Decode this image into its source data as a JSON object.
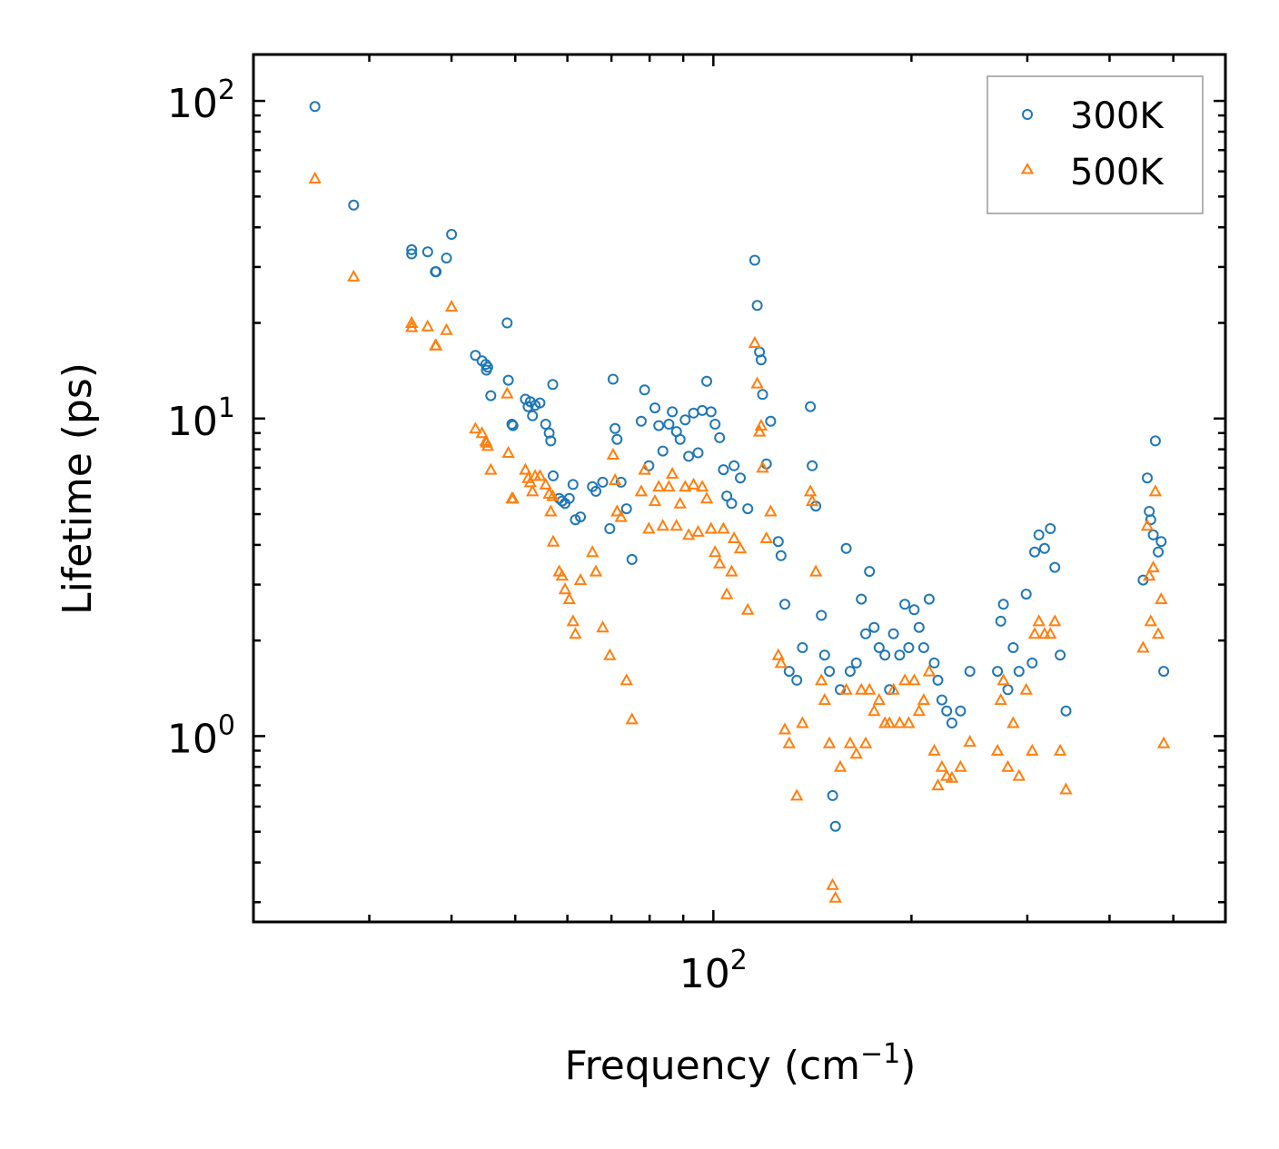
{
  "chart_data": {
    "type": "scatter",
    "title": "",
    "xlabel": "Frequency (cm",
    "xlabel_sup": "−1",
    "xlabel_end": ")",
    "ylabel": "Lifetime (ps)",
    "xscale": "log",
    "yscale": "log",
    "xlim": [
      20,
      600
    ],
    "ylim": [
      0.26,
      140
    ],
    "x_ticks": [
      {
        "base": "10",
        "exp": "2",
        "value": 100
      }
    ],
    "y_ticks": [
      {
        "base": "10",
        "exp": "0",
        "value": 1
      },
      {
        "base": "10",
        "exp": "1",
        "value": 10
      },
      {
        "base": "10",
        "exp": "2",
        "value": 100
      }
    ],
    "legend": {
      "position": "top-right",
      "entries": [
        "300K",
        "500K"
      ]
    },
    "series": [
      {
        "name": "300K",
        "marker": "circle",
        "color": "#1f77b4",
        "points": [
          [
            24.8,
            96
          ],
          [
            28.4,
            47
          ],
          [
            34.8,
            34
          ],
          [
            34.8,
            33
          ],
          [
            36.8,
            33.5
          ],
          [
            37.8,
            29
          ],
          [
            37.9,
            29
          ],
          [
            39.3,
            32
          ],
          [
            40,
            38
          ],
          [
            43.5,
            15.8
          ],
          [
            44.5,
            15.2
          ],
          [
            45.1,
            14.8
          ],
          [
            45.2,
            14.2
          ],
          [
            45.4,
            14.5
          ],
          [
            45.9,
            11.8
          ],
          [
            48.6,
            20
          ],
          [
            48.8,
            13.2
          ],
          [
            49.4,
            9.6
          ],
          [
            49.6,
            9.5
          ],
          [
            51.8,
            11.5
          ],
          [
            52.3,
            10.9
          ],
          [
            52.7,
            11.3
          ],
          [
            53.1,
            10.2
          ],
          [
            53.6,
            11
          ],
          [
            54.5,
            11.2
          ],
          [
            55.6,
            9.6
          ],
          [
            56.3,
            9
          ],
          [
            56.6,
            8.5
          ],
          [
            57,
            12.8
          ],
          [
            57.1,
            6.6
          ],
          [
            58.3,
            5.6
          ],
          [
            58.9,
            5.5
          ],
          [
            59.5,
            5.4
          ],
          [
            60.4,
            5.6
          ],
          [
            61.2,
            6.2
          ],
          [
            61.7,
            4.8
          ],
          [
            62.8,
            4.9
          ],
          [
            65.5,
            6.1
          ],
          [
            66.3,
            5.9
          ],
          [
            67.9,
            6.3
          ],
          [
            69.6,
            4.5
          ],
          [
            70.4,
            13.3
          ],
          [
            70.9,
            9.3
          ],
          [
            71.4,
            8.6
          ],
          [
            72.4,
            6.3
          ],
          [
            73.8,
            5.2
          ],
          [
            75.2,
            3.6
          ],
          [
            77.7,
            9.8
          ],
          [
            78.6,
            12.3
          ],
          [
            79.8,
            7.1
          ],
          [
            81.5,
            10.8
          ],
          [
            82.6,
            9.5
          ],
          [
            83.8,
            7.9
          ],
          [
            85.6,
            9.6
          ],
          [
            86.6,
            10.5
          ],
          [
            87.9,
            9.1
          ],
          [
            89,
            8.6
          ],
          [
            90.6,
            9.9
          ],
          [
            91.7,
            7.6
          ],
          [
            93.3,
            10.4
          ],
          [
            94.8,
            7.8
          ],
          [
            96.2,
            10.6
          ],
          [
            97.7,
            13.1
          ],
          [
            99.2,
            10.5
          ],
          [
            100.6,
            9.6
          ],
          [
            102.2,
            8.7
          ],
          [
            103.6,
            6.9
          ],
          [
            104.8,
            5.7
          ],
          [
            106.6,
            5.4
          ],
          [
            107.5,
            7.1
          ],
          [
            109.9,
            6.5
          ],
          [
            112.8,
            5.2
          ],
          [
            115.6,
            31.5
          ],
          [
            116.6,
            22.7
          ],
          [
            117.5,
            16.2
          ],
          [
            118.2,
            15.3
          ],
          [
            118.8,
            11.9
          ],
          [
            120.4,
            7.2
          ],
          [
            122.2,
            9.8
          ],
          [
            125.5,
            4.1
          ],
          [
            126.7,
            3.7
          ],
          [
            128.4,
            2.6
          ],
          [
            130.4,
            1.6
          ],
          [
            133.9,
            1.5
          ],
          [
            136.6,
            1.9
          ],
          [
            140.4,
            10.9
          ],
          [
            141.3,
            7.1
          ],
          [
            143.1,
            5.3
          ],
          [
            145.9,
            2.4
          ],
          [
            147.6,
            1.8
          ],
          [
            150.1,
            1.6
          ],
          [
            151.8,
            0.65
          ],
          [
            153.3,
            0.52
          ],
          [
            155.9,
            1.4
          ],
          [
            159.2,
            3.9
          ],
          [
            161.4,
            1.6
          ],
          [
            164.9,
            1.7
          ],
          [
            167.8,
            2.7
          ],
          [
            170.4,
            2.1
          ],
          [
            172.7,
            3.3
          ],
          [
            175.5,
            2.2
          ],
          [
            178.6,
            1.9
          ],
          [
            182.3,
            1.8
          ],
          [
            185.2,
            1.4
          ],
          [
            187.8,
            2.1
          ],
          [
            191.9,
            1.8
          ],
          [
            195.4,
            2.6
          ],
          [
            198.1,
            1.9
          ],
          [
            201.9,
            2.5
          ],
          [
            205.4,
            2.2
          ],
          [
            208.8,
            1.9
          ],
          [
            212.8,
            2.7
          ],
          [
            216.6,
            1.7
          ],
          [
            219.4,
            1.5
          ],
          [
            222.5,
            1.3
          ],
          [
            226.3,
            1.2
          ],
          [
            230.4,
            1.1
          ],
          [
            237.5,
            1.2
          ],
          [
            245.4,
            1.6
          ],
          [
            270.3,
            1.6
          ],
          [
            273.4,
            2.3
          ],
          [
            275.9,
            2.6
          ],
          [
            280.2,
            1.4
          ],
          [
            285.5,
            1.9
          ],
          [
            291.4,
            1.6
          ],
          [
            298.8,
            2.8
          ],
          [
            305.2,
            1.7
          ],
          [
            307.8,
            3.8
          ],
          [
            312.4,
            4.3
          ],
          [
            318.6,
            3.9
          ],
          [
            325.2,
            4.5
          ],
          [
            330.3,
            3.4
          ],
          [
            336.5,
            1.8
          ],
          [
            343.5,
            1.2
          ],
          [
            449.8,
            3.1
          ],
          [
            456.5,
            6.5
          ],
          [
            459.7,
            5.1
          ],
          [
            462.1,
            4.8
          ],
          [
            466.1,
            4.3
          ],
          [
            469.6,
            8.5
          ],
          [
            474.2,
            3.8
          ],
          [
            479.3,
            4.1
          ],
          [
            483.5,
            1.6
          ]
        ]
      },
      {
        "name": "500K",
        "marker": "triangle",
        "color": "#ff7f0e",
        "points": [
          [
            24.8,
            57
          ],
          [
            28.4,
            28
          ],
          [
            34.8,
            20
          ],
          [
            34.8,
            19.4
          ],
          [
            36.8,
            19.5
          ],
          [
            37.8,
            17
          ],
          [
            37.9,
            17
          ],
          [
            39.3,
            19
          ],
          [
            40,
            22.5
          ],
          [
            43.5,
            9.3
          ],
          [
            44.5,
            9
          ],
          [
            45.1,
            8.5
          ],
          [
            45.2,
            8.4
          ],
          [
            45.4,
            8.2
          ],
          [
            45.9,
            6.9
          ],
          [
            48.6,
            12
          ],
          [
            48.8,
            7.8
          ],
          [
            49.4,
            5.6
          ],
          [
            49.6,
            5.6
          ],
          [
            51.8,
            6.9
          ],
          [
            52.3,
            6.5
          ],
          [
            52.7,
            6.3
          ],
          [
            53.1,
            5.9
          ],
          [
            53.6,
            6.6
          ],
          [
            54.5,
            6.6
          ],
          [
            55.6,
            6.2
          ],
          [
            56.3,
            5.8
          ],
          [
            56.6,
            5.1
          ],
          [
            57,
            5.7
          ],
          [
            57.1,
            4.1
          ],
          [
            58.3,
            3.3
          ],
          [
            58.9,
            3.2
          ],
          [
            59.5,
            2.9
          ],
          [
            60.4,
            2.7
          ],
          [
            61.2,
            2.3
          ],
          [
            61.7,
            2.1
          ],
          [
            62.8,
            3.1
          ],
          [
            65.5,
            3.8
          ],
          [
            66.3,
            3.3
          ],
          [
            67.9,
            2.2
          ],
          [
            69.6,
            1.8
          ],
          [
            70.4,
            7.7
          ],
          [
            70.9,
            6.4
          ],
          [
            71.4,
            5.1
          ],
          [
            72.4,
            4.9
          ],
          [
            73.8,
            1.5
          ],
          [
            75.2,
            1.13
          ],
          [
            77.7,
            5.9
          ],
          [
            78.6,
            6.9
          ],
          [
            79.8,
            4.5
          ],
          [
            81.5,
            5.5
          ],
          [
            82.6,
            6.1
          ],
          [
            83.8,
            4.6
          ],
          [
            85.6,
            6.1
          ],
          [
            86.6,
            6.7
          ],
          [
            87.9,
            4.6
          ],
          [
            89,
            5.4
          ],
          [
            90.6,
            6.1
          ],
          [
            91.7,
            4.3
          ],
          [
            93.3,
            6.2
          ],
          [
            94.8,
            4.4
          ],
          [
            96.2,
            6.1
          ],
          [
            97.7,
            5.6
          ],
          [
            99.2,
            4.5
          ],
          [
            100.6,
            3.8
          ],
          [
            102.2,
            3.5
          ],
          [
            103.6,
            4.5
          ],
          [
            104.8,
            2.8
          ],
          [
            106.6,
            3.3
          ],
          [
            107.5,
            4.2
          ],
          [
            109.9,
            3.9
          ],
          [
            112.8,
            2.5
          ],
          [
            115.6,
            17.3
          ],
          [
            116.6,
            12.9
          ],
          [
            117.5,
            9.1
          ],
          [
            118.2,
            9.5
          ],
          [
            118.8,
            7
          ],
          [
            120.4,
            4.2
          ],
          [
            122.2,
            5.1
          ],
          [
            125.5,
            1.8
          ],
          [
            126.7,
            1.7
          ],
          [
            128.4,
            1.05
          ],
          [
            130.4,
            0.95
          ],
          [
            133.9,
            0.65
          ],
          [
            136.6,
            1.1
          ],
          [
            140.4,
            5.9
          ],
          [
            141.3,
            5.5
          ],
          [
            143.1,
            3.3
          ],
          [
            145.9,
            1.5
          ],
          [
            147.6,
            1.3
          ],
          [
            150.1,
            0.95
          ],
          [
            151.8,
            0.34
          ],
          [
            153.3,
            0.31
          ],
          [
            155.9,
            0.8
          ],
          [
            159.2,
            1.4
          ],
          [
            161.4,
            0.95
          ],
          [
            164.9,
            0.88
          ],
          [
            167.8,
            1.4
          ],
          [
            170.4,
            0.95
          ],
          [
            172.7,
            1.4
          ],
          [
            175.5,
            1.2
          ],
          [
            178.6,
            1.3
          ],
          [
            182.3,
            1.1
          ],
          [
            185.2,
            1.1
          ],
          [
            187.8,
            1.4
          ],
          [
            191.9,
            1.1
          ],
          [
            195.4,
            1.5
          ],
          [
            198.1,
            1.1
          ],
          [
            201.9,
            1.5
          ],
          [
            205.4,
            1.2
          ],
          [
            208.8,
            1.3
          ],
          [
            212.8,
            1.6
          ],
          [
            216.6,
            0.9
          ],
          [
            219.4,
            0.7
          ],
          [
            222.5,
            0.8
          ],
          [
            226.3,
            0.75
          ],
          [
            230.4,
            0.74
          ],
          [
            237.5,
            0.8
          ],
          [
            245.4,
            0.96
          ],
          [
            270.3,
            0.9
          ],
          [
            273.4,
            1.3
          ],
          [
            275.9,
            1.5
          ],
          [
            280.2,
            0.8
          ],
          [
            285.5,
            1.1
          ],
          [
            291.4,
            0.75
          ],
          [
            298.8,
            1.4
          ],
          [
            305.2,
            0.9
          ],
          [
            307.8,
            2.1
          ],
          [
            312.4,
            2.3
          ],
          [
            318.6,
            2.1
          ],
          [
            325.2,
            2.1
          ],
          [
            330.3,
            2.3
          ],
          [
            336.5,
            0.9
          ],
          [
            343.5,
            0.68
          ],
          [
            449.8,
            1.9
          ],
          [
            456.5,
            4.6
          ],
          [
            459.7,
            3.2
          ],
          [
            462.1,
            2.3
          ],
          [
            466.1,
            3.4
          ],
          [
            469.6,
            5.9
          ],
          [
            474.2,
            2.1
          ],
          [
            479.3,
            2.7
          ],
          [
            483.5,
            0.95
          ]
        ]
      }
    ]
  }
}
